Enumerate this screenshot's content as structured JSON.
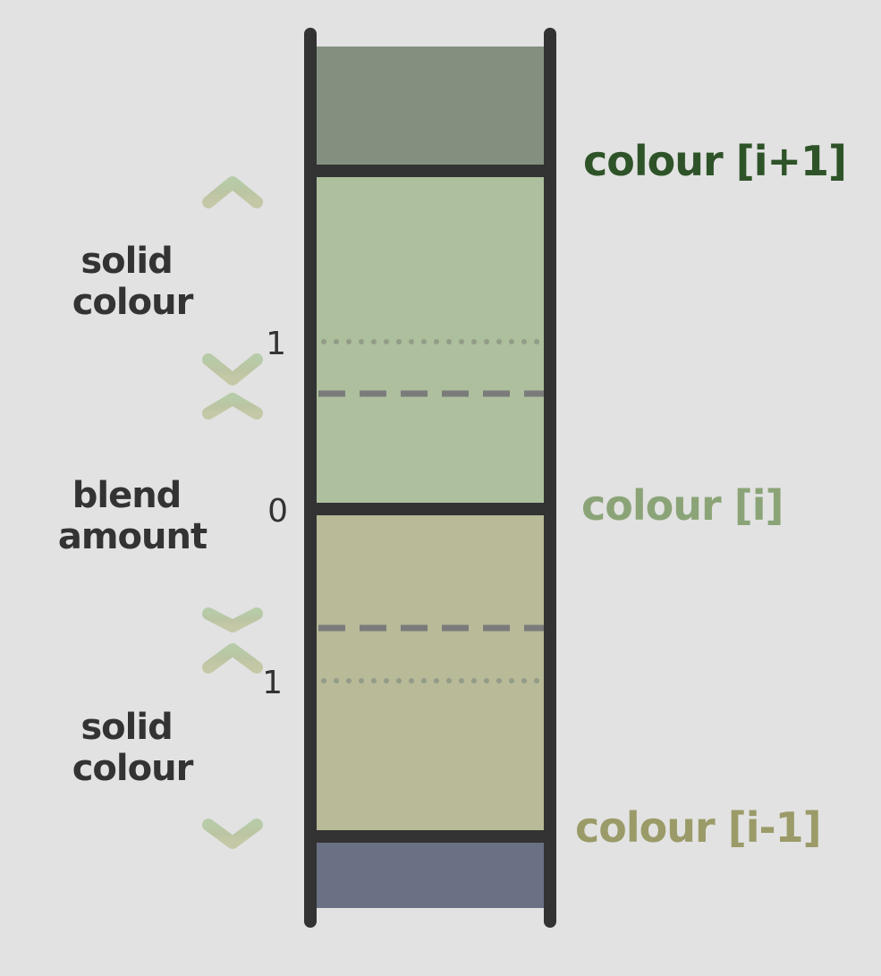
{
  "labels": {
    "top_solid": [
      "solid",
      "colour"
    ],
    "blend": [
      "blend",
      "amount"
    ],
    "bottom_solid": [
      "solid",
      "colour"
    ],
    "tick_top": "1",
    "tick_zero": "0",
    "tick_bottom": "1",
    "colour_next": "colour [i+1]",
    "colour_current": "colour [i]",
    "colour_prev": "colour [i-1]"
  },
  "colors": {
    "background": "#e2e2e2",
    "band_next": "#83907f",
    "band_current": "#adbf9d",
    "band_prev": "#b8ba98",
    "band_below": "#6a7184",
    "frame": "#333333",
    "dashed_line": "#7b7b7b",
    "dotted_line": "#929c87",
    "arrow_top": "#b7cba8",
    "arrow_mid": "#bbc4a3",
    "arrow_bottom": "#c5c8a6",
    "label_next": "#2e5328",
    "label_current": "#8ba477",
    "label_prev": "#9b9b69"
  }
}
